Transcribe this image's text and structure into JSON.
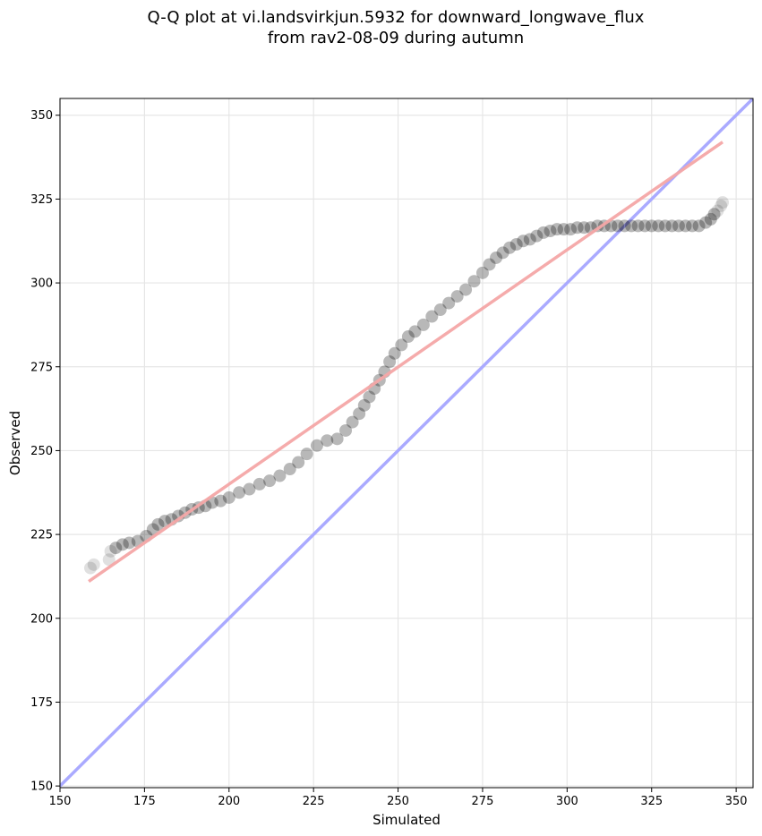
{
  "chart_data": {
    "type": "scatter",
    "title_line1": "Q-Q plot at vi.landsvirkjun.5932 for downward_longwave_flux",
    "title_line2": "from rav2-08-09 during autumn",
    "xlabel": "Simulated",
    "ylabel": "Observed",
    "xlim": [
      150,
      355
    ],
    "ylim": [
      149.5,
      355
    ],
    "xticks": [
      150,
      175,
      200,
      225,
      250,
      275,
      300,
      325,
      350
    ],
    "yticks": [
      150,
      175,
      200,
      225,
      250,
      275,
      300,
      325,
      350
    ],
    "grid": true,
    "points_color": "#000000",
    "identity_line_color": "#aaaaff",
    "fit_line_color": "#f4a6a6",
    "identity_line": {
      "x": [
        150,
        355
      ],
      "y": [
        150,
        355
      ]
    },
    "fit_line": {
      "x": [
        158.5,
        346
      ],
      "y": [
        211,
        342
      ]
    },
    "points": {
      "x": [
        159.0,
        160.0,
        164.5,
        165.0,
        166.5,
        168.5,
        170.5,
        173.0,
        175.5,
        177.5,
        179.0,
        181.0,
        183.0,
        185.0,
        187.0,
        189.0,
        191.0,
        193.0,
        195.0,
        197.5,
        200.0,
        203.0,
        206.0,
        209.0,
        212.0,
        215.0,
        218.0,
        220.5,
        223.0,
        226.0,
        229.0,
        232.0,
        234.5,
        236.5,
        238.5,
        240.0,
        241.5,
        243.0,
        244.5,
        246.0,
        247.5,
        249.0,
        251.0,
        253.0,
        255.0,
        257.5,
        260.0,
        262.5,
        265.0,
        267.5,
        270.0,
        272.5,
        275.0,
        277.0,
        279.0,
        281.0,
        283.0,
        285.0,
        287.0,
        289.0,
        291.0,
        293.0,
        295.0,
        297.0,
        299.0,
        301.0,
        303.0,
        305.0,
        307.0,
        309.0,
        311.0,
        313.0,
        315.0,
        317.0,
        319.0,
        321.0,
        323.0,
        325.0,
        327.0,
        329.0,
        331.0,
        333.0,
        335.0,
        337.0,
        339.0,
        341.0,
        342.5,
        343.5,
        344.5,
        345.5,
        346.0
      ],
      "y": [
        215.0,
        216.0,
        217.5,
        220.0,
        221.0,
        222.0,
        222.5,
        223.0,
        224.5,
        226.5,
        228.0,
        229.0,
        229.5,
        230.5,
        231.5,
        232.5,
        233.0,
        233.5,
        234.5,
        235.0,
        236.0,
        237.5,
        238.5,
        240.0,
        241.0,
        242.5,
        244.5,
        246.5,
        249.0,
        251.5,
        253.0,
        253.5,
        256.0,
        258.5,
        261.0,
        263.5,
        266.0,
        268.5,
        271.0,
        273.5,
        276.5,
        279.0,
        281.5,
        284.0,
        285.5,
        287.5,
        290.0,
        292.0,
        294.0,
        296.0,
        298.0,
        300.5,
        303.0,
        305.5,
        307.5,
        309.0,
        310.5,
        311.5,
        312.5,
        313.0,
        314.0,
        315.0,
        315.5,
        316.0,
        316.0,
        316.0,
        316.5,
        316.5,
        316.5,
        317.0,
        317.0,
        317.0,
        317.0,
        317.0,
        317.0,
        317.0,
        317.0,
        317.0,
        317.0,
        317.0,
        317.0,
        317.0,
        317.0,
        317.0,
        317.0,
        318.0,
        319.0,
        320.5,
        321.5,
        323.0,
        324.0
      ]
    }
  }
}
